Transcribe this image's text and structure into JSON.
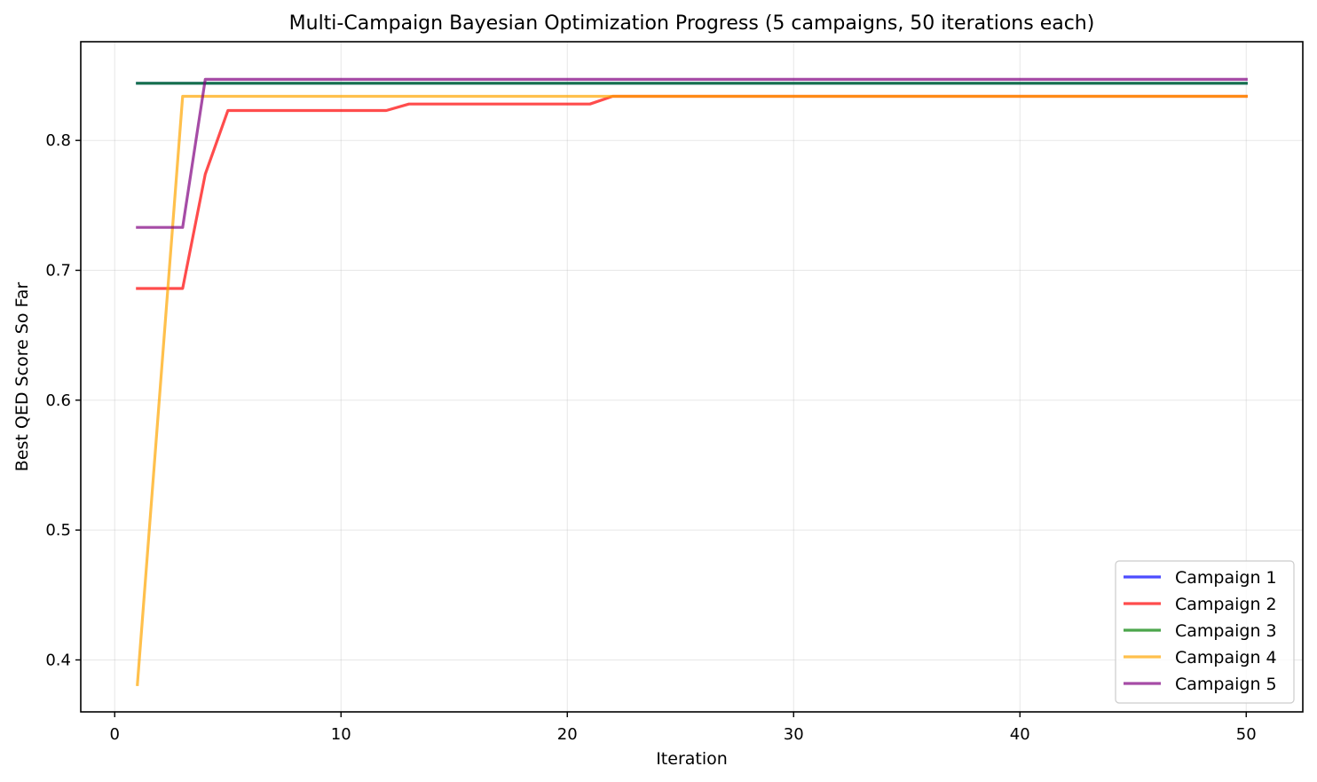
{
  "chart_data": {
    "type": "line",
    "title": "Multi-Campaign Bayesian Optimization Progress (5 campaigns, 50 iterations each)",
    "xlabel": "Iteration",
    "ylabel": "Best QED Score So Far",
    "xlim": [
      -1.5,
      52.5
    ],
    "ylim": [
      0.36,
      0.876
    ],
    "xticks": [
      0,
      10,
      20,
      30,
      40,
      50
    ],
    "yticks": [
      0.4,
      0.5,
      0.6,
      0.7,
      0.8
    ],
    "xtick_labels": [
      "0",
      "10",
      "20",
      "30",
      "40",
      "50"
    ],
    "ytick_labels": [
      "0.4",
      "0.5",
      "0.6",
      "0.7",
      "0.8"
    ],
    "grid": true,
    "legend_position": "lower-right",
    "series": [
      {
        "name": "Campaign 1",
        "color": "#0000ff",
        "points": [
          [
            1,
            0.844
          ],
          [
            50,
            0.844
          ]
        ]
      },
      {
        "name": "Campaign 2",
        "color": "#ff0000",
        "points": [
          [
            1,
            0.686
          ],
          [
            3,
            0.686
          ],
          [
            4,
            0.774
          ],
          [
            5,
            0.823
          ],
          [
            12,
            0.823
          ],
          [
            13,
            0.828
          ],
          [
            21,
            0.828
          ],
          [
            22,
            0.834
          ],
          [
            50,
            0.834
          ]
        ]
      },
      {
        "name": "Campaign 3",
        "color": "#008000",
        "points": [
          [
            1,
            0.844
          ],
          [
            50,
            0.844
          ]
        ]
      },
      {
        "name": "Campaign 4",
        "color": "#ffa500",
        "points": [
          [
            1,
            0.381
          ],
          [
            3,
            0.834
          ],
          [
            50,
            0.834
          ]
        ]
      },
      {
        "name": "Campaign 5",
        "color": "#800080",
        "points": [
          [
            1,
            0.733
          ],
          [
            3,
            0.733
          ],
          [
            4,
            0.847
          ],
          [
            50,
            0.847
          ]
        ]
      }
    ]
  }
}
